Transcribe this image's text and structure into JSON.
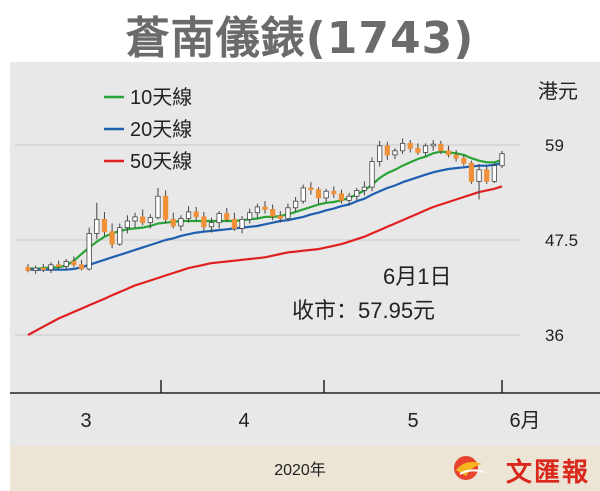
{
  "title": "蒼南儀錶(1743)",
  "unit": "港元",
  "date_caption": "2020年",
  "annotation": {
    "date": "6月1日",
    "close": "收市：57.95元"
  },
  "watermark": "文匯報",
  "colors": {
    "ma10": "#2aa336",
    "ma20": "#1f5fb0",
    "ma50": "#e02020",
    "up": "#ffffff",
    "down": "#f0913a",
    "wick": "#444444"
  },
  "chart_data": {
    "type": "candlestick",
    "title": "蒼南儀錶(1743)",
    "ylabel": "港元",
    "yticks": [
      36,
      47.5,
      59
    ],
    "xticks": [
      "3",
      "4",
      "5",
      "6月"
    ],
    "xlabel": "2020年",
    "ylim": [
      33,
      63
    ],
    "grid": "horizontal",
    "legend_position": "top-left",
    "candles": [
      [
        44.2,
        44.6,
        43.6,
        43.8
      ],
      [
        43.8,
        44.4,
        43.4,
        44.1
      ],
      [
        44.1,
        44.6,
        43.6,
        43.9
      ],
      [
        43.9,
        44.8,
        43.5,
        44.5
      ],
      [
        44.5,
        45.0,
        44.0,
        44.3
      ],
      [
        44.3,
        45.2,
        43.9,
        44.9
      ],
      [
        44.9,
        45.5,
        44.2,
        44.5
      ],
      [
        44.5,
        45.1,
        43.8,
        44.0
      ],
      [
        44.0,
        49.0,
        43.8,
        48.3
      ],
      [
        48.3,
        52.0,
        47.6,
        50.0
      ],
      [
        50.0,
        50.9,
        48.0,
        48.5
      ],
      [
        48.5,
        49.5,
        46.5,
        47.0
      ],
      [
        47.0,
        49.5,
        46.8,
        49.0
      ],
      [
        49.0,
        50.5,
        48.3,
        49.8
      ],
      [
        49.8,
        50.8,
        49.0,
        50.3
      ],
      [
        50.3,
        51.2,
        49.3,
        49.6
      ],
      [
        49.6,
        50.6,
        48.9,
        50.2
      ],
      [
        50.2,
        53.8,
        50.0,
        52.8
      ],
      [
        52.8,
        53.5,
        49.5,
        50.0
      ],
      [
        50.0,
        50.8,
        48.9,
        49.2
      ],
      [
        49.2,
        50.5,
        48.6,
        50.1
      ],
      [
        50.1,
        51.6,
        49.6,
        50.9
      ],
      [
        50.9,
        51.5,
        49.8,
        50.3
      ],
      [
        50.3,
        50.9,
        48.6,
        49.1
      ],
      [
        49.1,
        50.2,
        48.4,
        49.6
      ],
      [
        49.6,
        51.0,
        48.9,
        50.7
      ],
      [
        50.7,
        51.4,
        49.7,
        50.0
      ],
      [
        50.0,
        50.8,
        48.6,
        48.9
      ],
      [
        48.9,
        50.4,
        48.3,
        50.0
      ],
      [
        50.0,
        51.3,
        49.5,
        50.8
      ],
      [
        50.8,
        51.9,
        50.2,
        51.5
      ],
      [
        51.5,
        52.2,
        50.7,
        51.2
      ],
      [
        51.2,
        51.8,
        49.9,
        50.4
      ],
      [
        50.4,
        51.0,
        49.6,
        50.1
      ],
      [
        50.1,
        51.9,
        49.8,
        51.4
      ],
      [
        51.4,
        52.7,
        50.9,
        52.2
      ],
      [
        52.2,
        54.2,
        51.9,
        53.8
      ],
      [
        53.8,
        54.5,
        53.0,
        53.6
      ],
      [
        53.6,
        53.9,
        51.9,
        52.6
      ],
      [
        52.6,
        53.7,
        52.1,
        53.4
      ],
      [
        53.4,
        54.0,
        52.6,
        53.1
      ],
      [
        53.1,
        53.6,
        51.9,
        52.3
      ],
      [
        52.3,
        53.2,
        51.7,
        52.8
      ],
      [
        52.8,
        53.8,
        52.3,
        53.5
      ],
      [
        53.5,
        54.6,
        52.9,
        53.9
      ],
      [
        53.9,
        57.5,
        53.4,
        57.0
      ],
      [
        57.0,
        59.5,
        56.4,
        58.9
      ],
      [
        58.9,
        59.4,
        57.2,
        57.8
      ],
      [
        57.8,
        58.6,
        57.3,
        58.3
      ],
      [
        58.3,
        59.8,
        57.9,
        59.2
      ],
      [
        59.2,
        59.6,
        58.1,
        58.6
      ],
      [
        58.6,
        59.2,
        57.8,
        58.1
      ],
      [
        58.1,
        59.2,
        57.7,
        58.9
      ],
      [
        58.9,
        59.6,
        58.3,
        59.1
      ],
      [
        59.1,
        59.5,
        57.9,
        58.3
      ],
      [
        58.3,
        58.9,
        57.5,
        57.8
      ],
      [
        57.8,
        58.4,
        57.0,
        57.4
      ],
      [
        57.4,
        57.8,
        56.5,
        56.8
      ],
      [
        56.8,
        57.1,
        54.3,
        54.6
      ],
      [
        54.6,
        56.7,
        52.4,
        56.0
      ],
      [
        56.0,
        56.5,
        54.3,
        54.6
      ],
      [
        54.6,
        56.8,
        54.4,
        56.5
      ],
      [
        56.5,
        58.3,
        56.2,
        57.95
      ]
    ],
    "series": [
      {
        "name": "10天線",
        "values": [
          44.1,
          44.0,
          44.1,
          44.2,
          44.2,
          44.4,
          45.0,
          45.8,
          46.6,
          47.3,
          47.9,
          48.3,
          48.6,
          48.8,
          48.9,
          49.0,
          49.2,
          49.5,
          49.6,
          49.7,
          49.8,
          49.8,
          49.8,
          49.8,
          49.8,
          49.8,
          49.8,
          49.8,
          49.9,
          50.0,
          50.1,
          50.3,
          50.3,
          50.4,
          50.6,
          50.9,
          51.2,
          51.5,
          51.8,
          52.0,
          52.1,
          52.3,
          52.6,
          53.0,
          53.5,
          54.2,
          55.0,
          55.6,
          56.0,
          56.5,
          56.9,
          57.3,
          57.6,
          58.0,
          58.2,
          58.1,
          58.0,
          57.8,
          57.4,
          57.1,
          56.9,
          56.9,
          57.2
        ]
      },
      {
        "name": "20天線",
        "values": [
          43.9,
          43.9,
          43.9,
          43.9,
          43.9,
          43.9,
          44.0,
          44.2,
          44.5,
          44.8,
          45.1,
          45.4,
          45.7,
          46.0,
          46.3,
          46.6,
          46.9,
          47.2,
          47.5,
          47.7,
          48.0,
          48.2,
          48.4,
          48.5,
          48.6,
          48.7,
          48.8,
          48.9,
          49.0,
          49.1,
          49.2,
          49.4,
          49.6,
          49.8,
          49.9,
          50.1,
          50.3,
          50.6,
          50.8,
          51.1,
          51.3,
          51.6,
          51.8,
          52.2,
          52.5,
          53.0,
          53.4,
          53.8,
          54.1,
          54.5,
          54.8,
          55.1,
          55.4,
          55.7,
          55.9,
          56.1,
          56.2,
          56.3,
          56.4,
          56.5,
          56.5,
          56.6,
          56.8
        ]
      },
      {
        "name": "50天線",
        "values": [
          36.0,
          36.5,
          37.0,
          37.5,
          38.0,
          38.4,
          38.8,
          39.2,
          39.6,
          40.0,
          40.4,
          40.8,
          41.2,
          41.6,
          42.0,
          42.3,
          42.6,
          42.9,
          43.2,
          43.5,
          43.8,
          44.1,
          44.3,
          44.5,
          44.7,
          44.8,
          44.9,
          45.0,
          45.1,
          45.2,
          45.3,
          45.4,
          45.6,
          45.8,
          46.0,
          46.1,
          46.2,
          46.3,
          46.4,
          46.6,
          46.8,
          47.0,
          47.3,
          47.6,
          47.9,
          48.3,
          48.7,
          49.1,
          49.5,
          49.9,
          50.3,
          50.7,
          51.1,
          51.5,
          51.8,
          52.1,
          52.4,
          52.7,
          53.0,
          53.3,
          53.5,
          53.7,
          54.0
        ]
      }
    ]
  }
}
